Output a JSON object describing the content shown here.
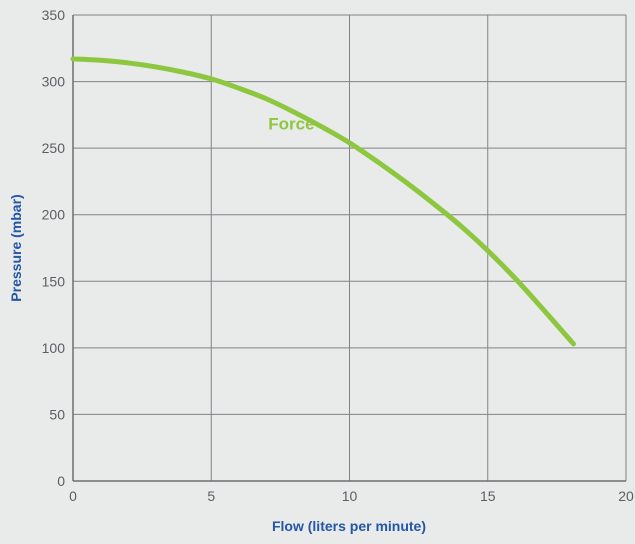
{
  "chart_data": {
    "type": "line",
    "title": "",
    "xlabel": "Flow (liters per minute)",
    "ylabel": "Pressure (mbar)",
    "xlim": [
      0,
      20
    ],
    "ylim": [
      0,
      350
    ],
    "x_ticks": [
      0,
      5,
      10,
      15,
      20
    ],
    "y_ticks": [
      0,
      50,
      100,
      150,
      200,
      250,
      300,
      350
    ],
    "x_tick_labels": [
      "0",
      "5",
      "10",
      "15",
      "20"
    ],
    "y_tick_labels": [
      "0",
      "50",
      "100",
      "150",
      "200",
      "250",
      "300",
      "350"
    ],
    "grid": true,
    "legend": "none",
    "series": [
      {
        "name": "Force",
        "color": "#8dc63f",
        "x": [
          0,
          1,
          2,
          3,
          4,
          5,
          6,
          7,
          8,
          9,
          10,
          11,
          12,
          13,
          14,
          15,
          16,
          17,
          18.1
        ],
        "y": [
          317,
          316,
          314,
          311,
          307,
          302,
          295,
          287,
          277,
          266,
          254,
          240,
          225,
          209,
          192,
          173,
          152,
          129,
          103
        ]
      }
    ],
    "annotations": [
      {
        "text": "Force",
        "x": 7.9,
        "y": 264
      }
    ]
  },
  "colors": {
    "background": "#e9eaea",
    "plot_background": "#e9eaea",
    "grid": "#7f8386",
    "axis_title": "#2356a7",
    "tick_label": "#5b5f63",
    "series": "#8dc63f"
  }
}
